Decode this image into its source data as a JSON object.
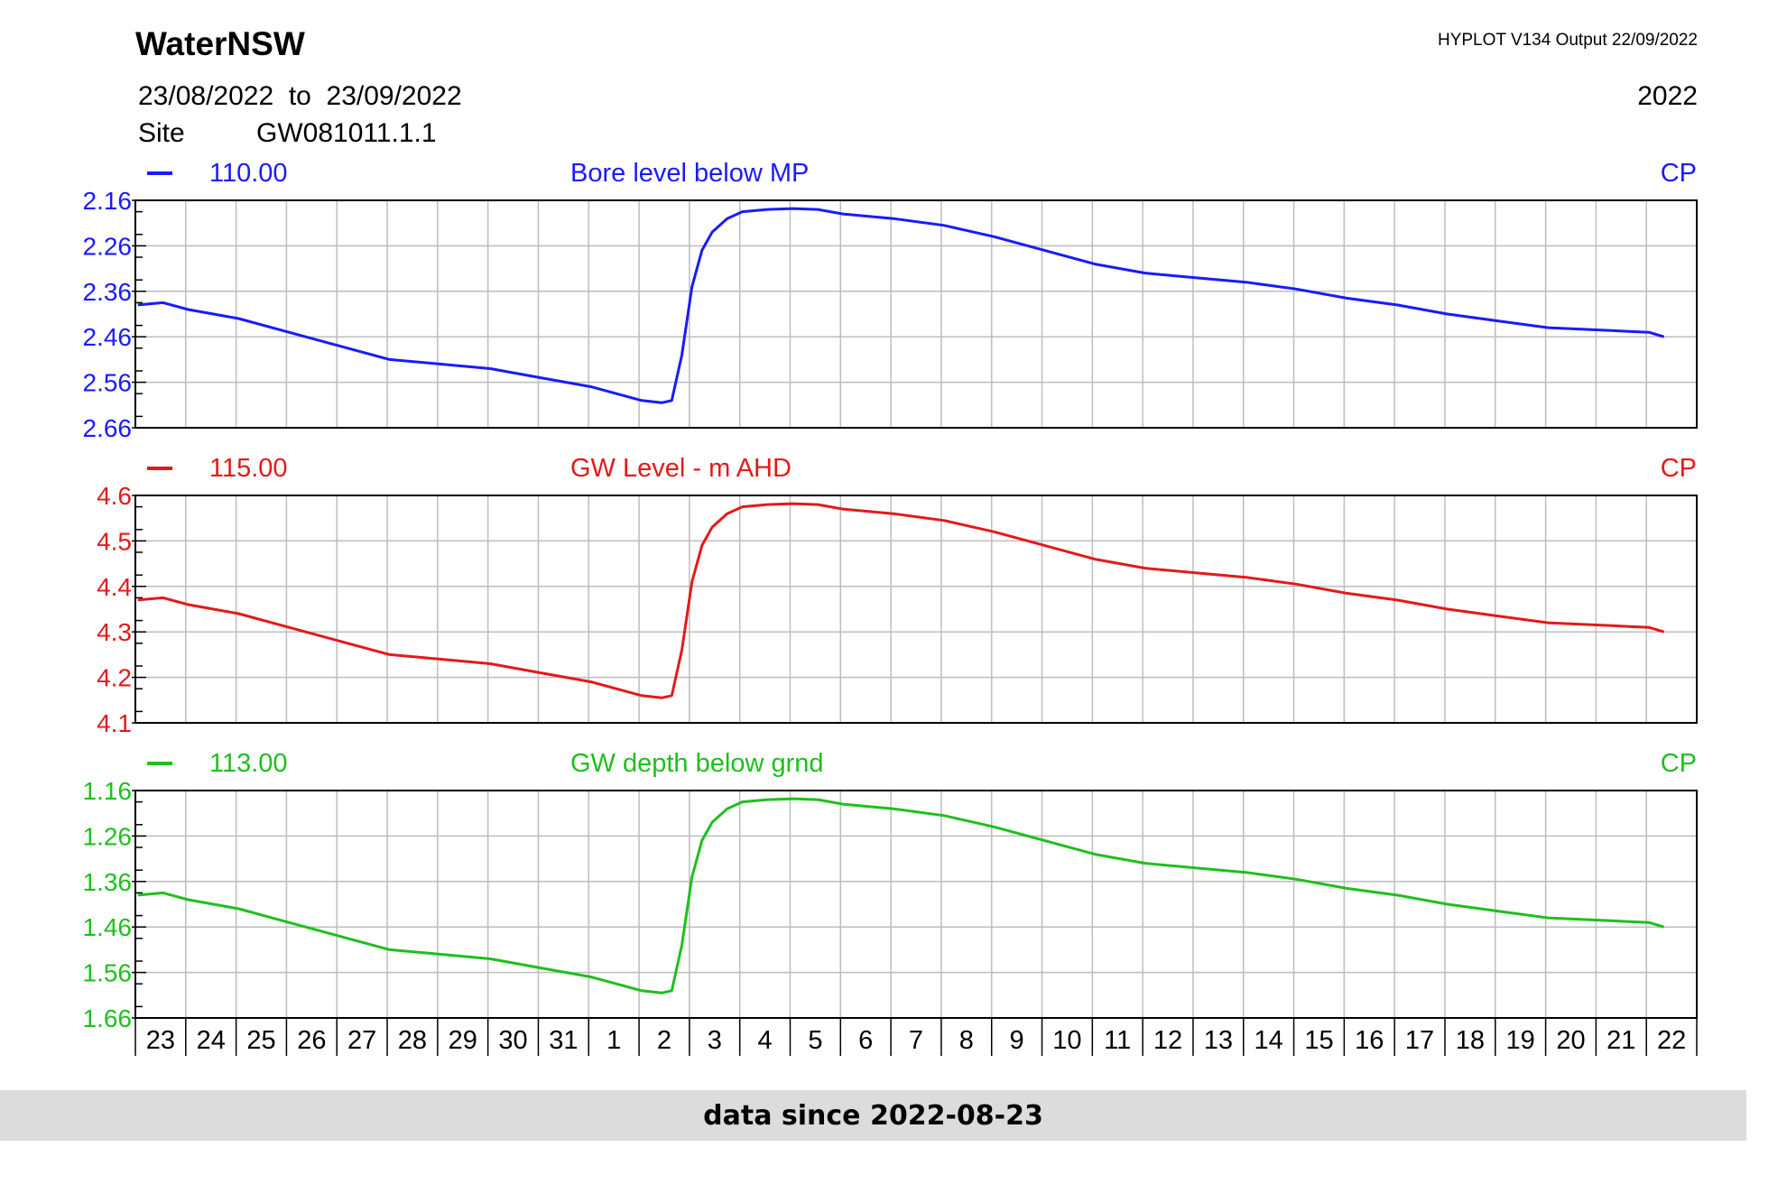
{
  "header": {
    "org": "WaterNSW",
    "version": "HYPLOT V134  Output 22/09/2022",
    "date_range": "23/08/2022  to  23/09/2022",
    "year": "2022",
    "site_label": "Site",
    "site_id": "GW081011.1.1"
  },
  "footer": {
    "text": "data since 2022-08-23"
  },
  "chart_data": [
    {
      "type": "line",
      "code": "110.00",
      "title": "Bore level below MP",
      "qual": "CP",
      "color": "#1a1aff",
      "inverted": true,
      "ylim": [
        2.16,
        2.66
      ],
      "yticks": [
        "2.16",
        "2.26",
        "2.36",
        "2.46",
        "2.56",
        "2.66"
      ],
      "x": [
        0,
        0.5,
        1,
        2,
        3,
        4,
        5,
        6,
        7,
        8,
        9,
        10,
        10.4,
        10.6,
        10.8,
        11.0,
        11.2,
        11.4,
        11.7,
        12.0,
        12.5,
        13,
        13.5,
        14,
        15,
        16,
        17,
        18,
        19,
        20,
        21,
        22,
        23,
        24,
        25,
        26,
        27,
        28,
        29,
        29.6,
        30,
        30.3
      ],
      "values": [
        2.39,
        2.385,
        2.4,
        2.42,
        2.45,
        2.48,
        2.51,
        2.52,
        2.53,
        2.55,
        2.57,
        2.6,
        2.605,
        2.6,
        2.5,
        2.35,
        2.27,
        2.23,
        2.2,
        2.185,
        2.18,
        2.178,
        2.18,
        2.19,
        2.2,
        2.215,
        2.24,
        2.27,
        2.3,
        2.32,
        2.33,
        2.34,
        2.355,
        2.375,
        2.39,
        2.41,
        2.425,
        2.44,
        2.445,
        2.448,
        2.45,
        2.46
      ]
    },
    {
      "type": "line",
      "code": "115.00",
      "title": "GW Level - m AHD",
      "qual": "CP",
      "color": "#e31a1a",
      "inverted": false,
      "ylim": [
        4.1,
        4.6
      ],
      "yticks": [
        "4.6",
        "4.5",
        "4.4",
        "4.3",
        "4.2",
        "4.1"
      ],
      "x": [
        0,
        0.5,
        1,
        2,
        3,
        4,
        5,
        6,
        7,
        8,
        9,
        10,
        10.4,
        10.6,
        10.8,
        11.0,
        11.2,
        11.4,
        11.7,
        12.0,
        12.5,
        13,
        13.5,
        14,
        15,
        16,
        17,
        18,
        19,
        20,
        21,
        22,
        23,
        24,
        25,
        26,
        27,
        28,
        29,
        29.6,
        30,
        30.3
      ],
      "values": [
        4.37,
        4.375,
        4.36,
        4.34,
        4.31,
        4.28,
        4.25,
        4.24,
        4.23,
        4.21,
        4.19,
        4.16,
        4.155,
        4.16,
        4.26,
        4.41,
        4.49,
        4.53,
        4.56,
        4.575,
        4.58,
        4.582,
        4.58,
        4.57,
        4.56,
        4.545,
        4.52,
        4.49,
        4.46,
        4.44,
        4.43,
        4.42,
        4.405,
        4.385,
        4.37,
        4.35,
        4.335,
        4.32,
        4.315,
        4.312,
        4.31,
        4.3
      ]
    },
    {
      "type": "line",
      "code": "113.00",
      "title": "GW depth below grnd",
      "qual": "CP",
      "color": "#1fbf1f",
      "inverted": true,
      "ylim": [
        1.16,
        1.66
      ],
      "yticks": [
        "1.16",
        "1.26",
        "1.36",
        "1.46",
        "1.56",
        "1.66"
      ],
      "x": [
        0,
        0.5,
        1,
        2,
        3,
        4,
        5,
        6,
        7,
        8,
        9,
        10,
        10.4,
        10.6,
        10.8,
        11.0,
        11.2,
        11.4,
        11.7,
        12.0,
        12.5,
        13,
        13.5,
        14,
        15,
        16,
        17,
        18,
        19,
        20,
        21,
        22,
        23,
        24,
        25,
        26,
        27,
        28,
        29,
        29.6,
        30,
        30.3
      ],
      "values": [
        1.39,
        1.385,
        1.4,
        1.42,
        1.45,
        1.48,
        1.51,
        1.52,
        1.53,
        1.55,
        1.57,
        1.6,
        1.605,
        1.6,
        1.5,
        1.35,
        1.27,
        1.23,
        1.2,
        1.185,
        1.18,
        1.178,
        1.18,
        1.19,
        1.2,
        1.215,
        1.24,
        1.27,
        1.3,
        1.32,
        1.33,
        1.34,
        1.355,
        1.375,
        1.39,
        1.41,
        1.425,
        1.44,
        1.445,
        1.448,
        1.45,
        1.46
      ]
    }
  ],
  "x_axis": {
    "days": [
      "23",
      "24",
      "25",
      "26",
      "27",
      "28",
      "29",
      "30",
      "31",
      "1",
      "2",
      "3",
      "4",
      "5",
      "6",
      "7",
      "8",
      "9",
      "10",
      "11",
      "12",
      "13",
      "14",
      "15",
      "16",
      "17",
      "18",
      "19",
      "20",
      "21",
      "22"
    ]
  }
}
